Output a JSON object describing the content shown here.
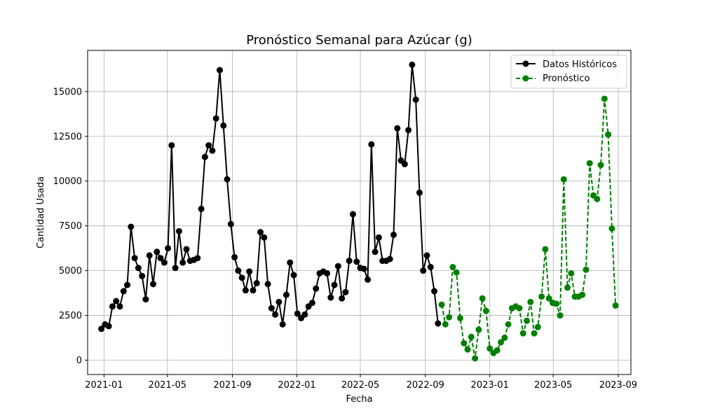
{
  "chart_data": {
    "type": "line",
    "title": "Pronóstico Semanal para Azúcar (g)",
    "xlabel": "Fecha",
    "ylabel": "Cantidad Usada",
    "grid": true,
    "legend_position": "top-right",
    "x_range": [
      "2020-12-01",
      "2023-09-25"
    ],
    "ylim": [
      -800,
      17300
    ],
    "x_ticks": [
      "2021-01-01",
      "2021-05-01",
      "2021-09-01",
      "2022-01-01",
      "2022-05-01",
      "2022-09-01",
      "2023-01-01",
      "2023-05-01",
      "2023-09-01"
    ],
    "x_tick_labels": [
      "2021-01",
      "2021-05",
      "2021-09",
      "2022-01",
      "2022-05",
      "2022-09",
      "2023-01",
      "2023-05",
      "2023-09"
    ],
    "y_ticks": [
      0,
      2500,
      5000,
      7500,
      10000,
      12500,
      15000
    ],
    "y_tick_labels": [
      "0",
      "2500",
      "5000",
      "7500",
      "10000",
      "12500",
      "15000"
    ],
    "series": [
      {
        "name": "Datos Históricos",
        "color": "#000000",
        "line_style": "solid",
        "x": [
          "2020-12-27",
          "2021-01-03",
          "2021-01-10",
          "2021-01-17",
          "2021-01-24",
          "2021-01-31",
          "2021-02-07",
          "2021-02-14",
          "2021-02-21",
          "2021-02-28",
          "2021-03-07",
          "2021-03-14",
          "2021-03-21",
          "2021-03-28",
          "2021-04-04",
          "2021-04-11",
          "2021-04-18",
          "2021-04-25",
          "2021-05-02",
          "2021-05-09",
          "2021-05-16",
          "2021-05-23",
          "2021-05-30",
          "2021-06-06",
          "2021-06-13",
          "2021-06-20",
          "2021-06-27",
          "2021-07-04",
          "2021-07-11",
          "2021-07-18",
          "2021-07-25",
          "2021-08-01",
          "2021-08-08",
          "2021-08-15",
          "2021-08-22",
          "2021-08-29",
          "2021-09-05",
          "2021-09-12",
          "2021-09-19",
          "2021-09-26",
          "2021-10-03",
          "2021-10-10",
          "2021-10-17",
          "2021-10-24",
          "2021-10-31",
          "2021-11-07",
          "2021-11-14",
          "2021-11-21",
          "2021-11-28",
          "2021-12-05",
          "2021-12-12",
          "2021-12-19",
          "2021-12-26",
          "2022-01-02",
          "2022-01-09",
          "2022-01-16",
          "2022-01-23",
          "2022-01-30",
          "2022-02-06",
          "2022-02-13",
          "2022-02-20",
          "2022-02-27",
          "2022-03-06",
          "2022-03-13",
          "2022-03-20",
          "2022-03-27",
          "2022-04-03",
          "2022-04-10",
          "2022-04-17",
          "2022-04-24",
          "2022-05-01",
          "2022-05-08",
          "2022-05-15",
          "2022-05-22",
          "2022-05-29",
          "2022-06-05",
          "2022-06-12",
          "2022-06-19",
          "2022-06-26",
          "2022-07-03",
          "2022-07-10",
          "2022-07-17",
          "2022-07-24",
          "2022-07-31",
          "2022-08-07",
          "2022-08-14",
          "2022-08-21",
          "2022-08-28",
          "2022-09-04",
          "2022-09-11",
          "2022-09-18",
          "2022-09-25"
        ],
        "y": [
          1750,
          2000,
          1900,
          3000,
          3300,
          3000,
          3850,
          4200,
          7450,
          5700,
          5150,
          4700,
          3400,
          5850,
          4250,
          6050,
          5700,
          5450,
          6250,
          12000,
          5150,
          7200,
          5450,
          6200,
          5550,
          5600,
          5700,
          8450,
          11350,
          12000,
          11700,
          13500,
          16200,
          13100,
          10100,
          7600,
          5750,
          5000,
          4600,
          3900,
          4950,
          3900,
          4300,
          7150,
          6850,
          4250,
          2900,
          2550,
          3250,
          2000,
          3650,
          5450,
          4750,
          2600,
          2350,
          2550,
          3000,
          3200,
          4000,
          4850,
          4950,
          4850,
          3500,
          4200,
          5250,
          3450,
          3800,
          5550,
          8150,
          5500,
          5150,
          5100,
          4500,
          12050,
          6050,
          6850,
          5550,
          5550,
          5650,
          7000,
          12950,
          11150,
          10950,
          12850,
          16500,
          14550,
          9350,
          5000,
          5850,
          5200,
          3850,
          2050
        ]
      },
      {
        "name": "Pronóstico",
        "color": "#008000",
        "line_style": "dashed",
        "x": [
          "2022-10-02",
          "2022-10-09",
          "2022-10-16",
          "2022-10-23",
          "2022-10-30",
          "2022-11-06",
          "2022-11-13",
          "2022-11-20",
          "2022-11-27",
          "2022-12-04",
          "2022-12-11",
          "2022-12-18",
          "2022-12-25",
          "2023-01-01",
          "2023-01-08",
          "2023-01-15",
          "2023-01-22",
          "2023-01-29",
          "2023-02-05",
          "2023-02-12",
          "2023-02-19",
          "2023-02-26",
          "2023-03-05",
          "2023-03-12",
          "2023-03-19",
          "2023-03-26",
          "2023-04-02",
          "2023-04-09",
          "2023-04-16",
          "2023-04-23",
          "2023-04-30",
          "2023-05-07",
          "2023-05-14",
          "2023-05-21",
          "2023-05-28",
          "2023-06-04",
          "2023-06-11",
          "2023-06-18",
          "2023-06-25",
          "2023-07-02",
          "2023-07-09",
          "2023-07-16",
          "2023-07-23",
          "2023-07-30",
          "2023-08-06",
          "2023-08-13",
          "2023-08-20",
          "2023-08-27"
        ],
        "y": [
          3100,
          2000,
          2400,
          5200,
          4900,
          2350,
          950,
          600,
          1300,
          100,
          1700,
          3450,
          2750,
          650,
          400,
          550,
          1000,
          1250,
          2000,
          2900,
          3000,
          2900,
          1500,
          2200,
          3250,
          1500,
          1850,
          3550,
          6200,
          3450,
          3200,
          3150,
          2500,
          10100,
          4050,
          4850,
          3550,
          3550,
          3650,
          5050,
          11000,
          9200,
          9000,
          10900,
          14600,
          12600,
          7350,
          3050
        ]
      }
    ]
  }
}
